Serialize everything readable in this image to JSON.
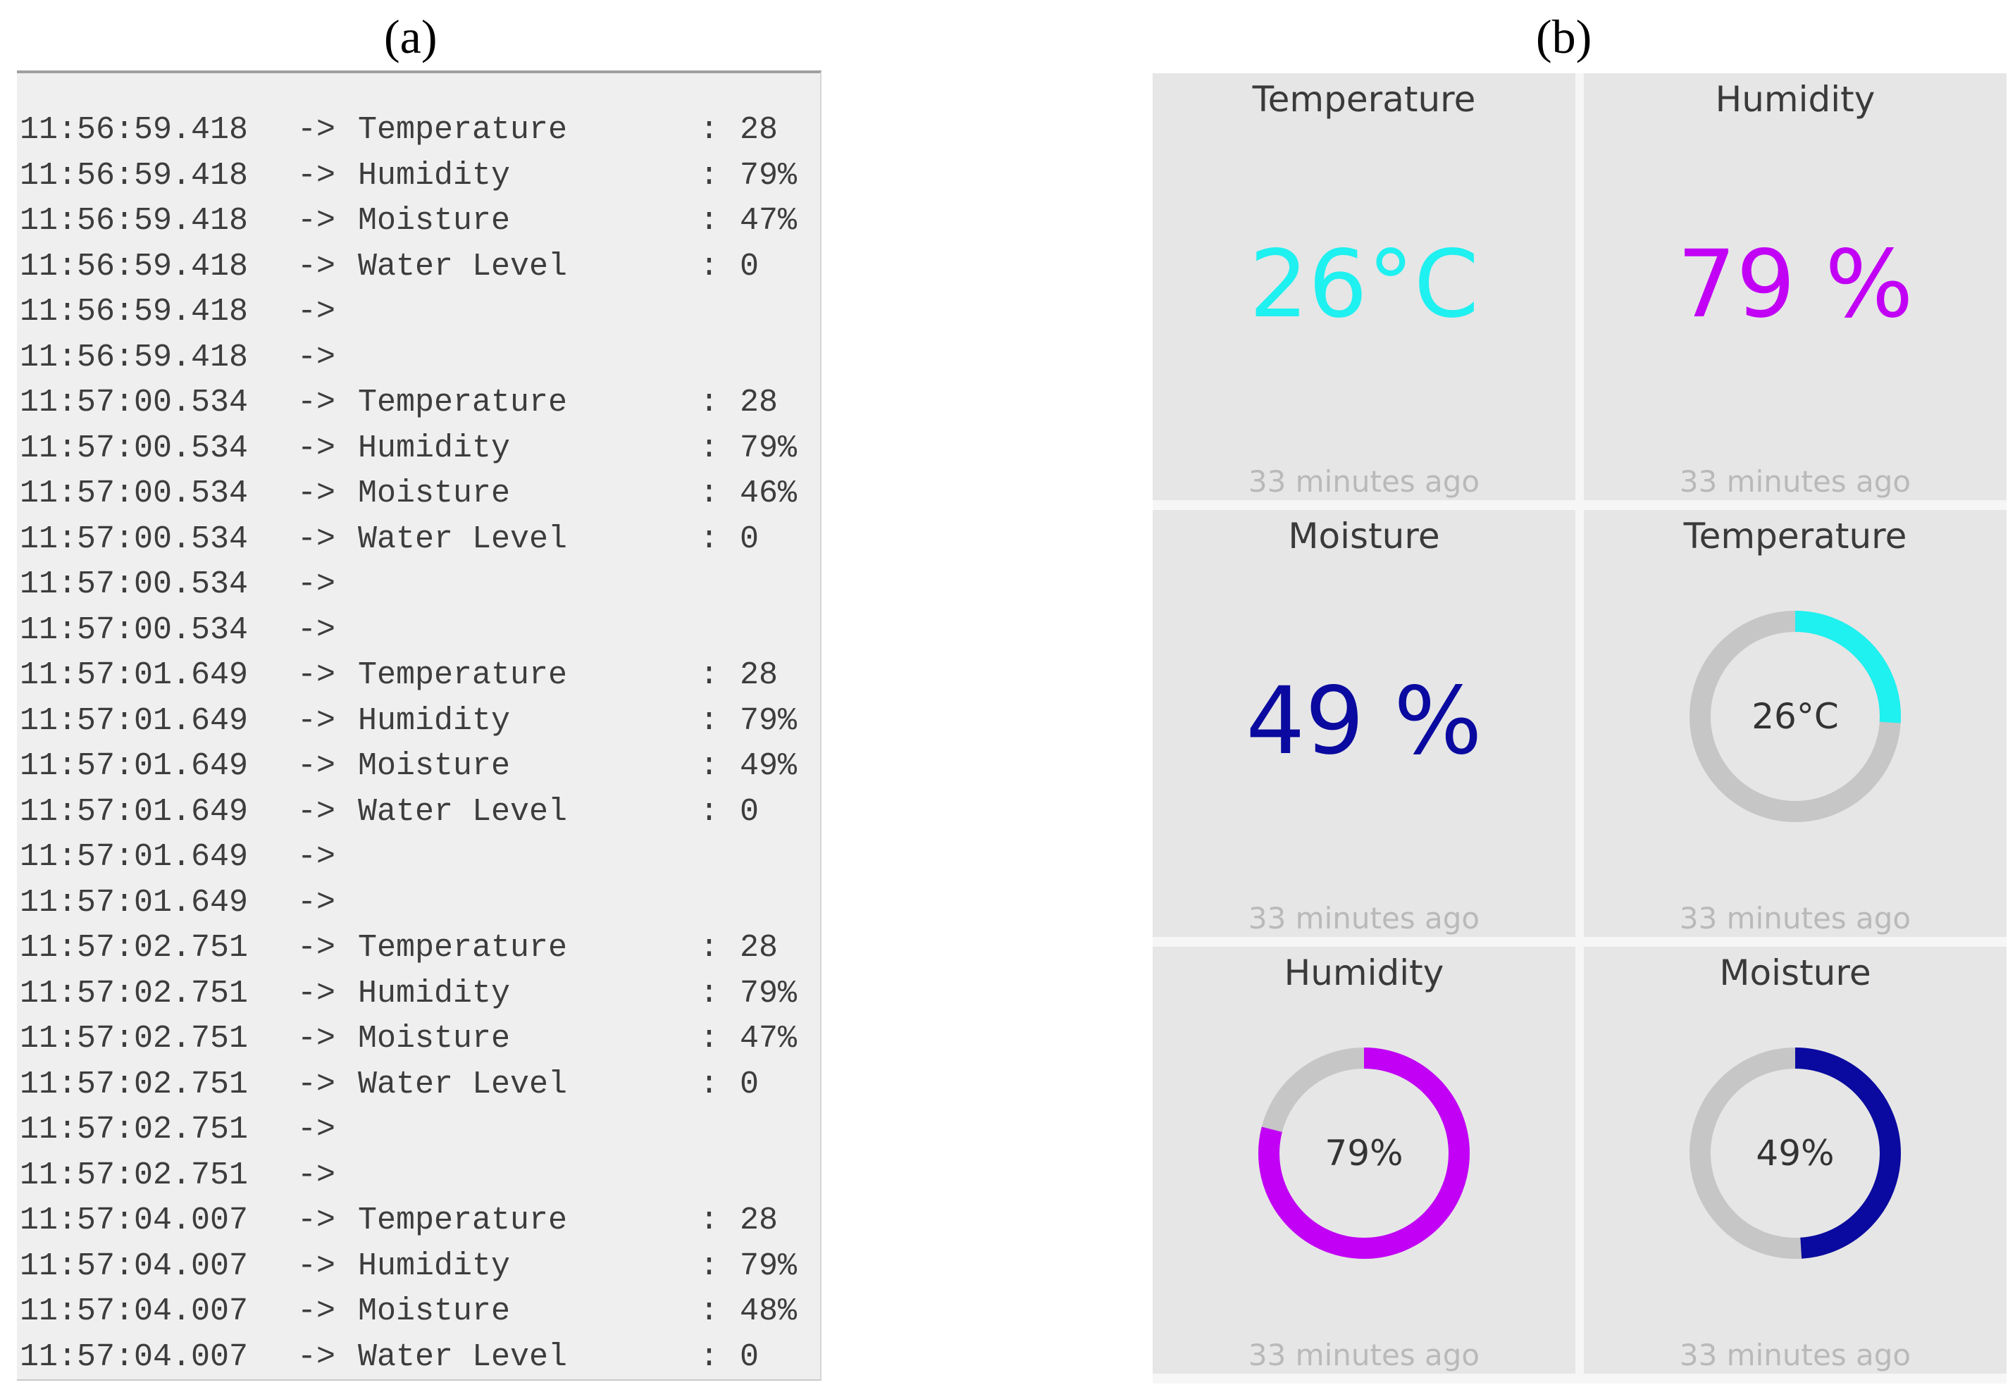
{
  "panels": {
    "a_label": "(a)",
    "b_label": "(b)"
  },
  "serial_log": [
    {
      "time": "11:56:59.418",
      "arrow": "->",
      "key": "Temperature",
      "colon": ":",
      "value": "28"
    },
    {
      "time": "11:56:59.418",
      "arrow": "->",
      "key": "Humidity",
      "colon": ":",
      "value": "79%"
    },
    {
      "time": "11:56:59.418",
      "arrow": "->",
      "key": "Moisture",
      "colon": ":",
      "value": "47%"
    },
    {
      "time": "11:56:59.418",
      "arrow": "->",
      "key": "Water Level",
      "colon": ":",
      "value": "0"
    },
    {
      "time": "11:56:59.418",
      "arrow": "->",
      "key": "",
      "colon": "",
      "value": ""
    },
    {
      "time": "11:56:59.418",
      "arrow": "->",
      "key": "",
      "colon": "",
      "value": ""
    },
    {
      "time": "11:57:00.534",
      "arrow": "->",
      "key": "Temperature",
      "colon": ":",
      "value": "28"
    },
    {
      "time": "11:57:00.534",
      "arrow": "->",
      "key": "Humidity",
      "colon": ":",
      "value": "79%"
    },
    {
      "time": "11:57:00.534",
      "arrow": "->",
      "key": "Moisture",
      "colon": ":",
      "value": "46%"
    },
    {
      "time": "11:57:00.534",
      "arrow": "->",
      "key": "Water Level",
      "colon": ":",
      "value": "0"
    },
    {
      "time": "11:57:00.534",
      "arrow": "->",
      "key": "",
      "colon": "",
      "value": ""
    },
    {
      "time": "11:57:00.534",
      "arrow": "->",
      "key": "",
      "colon": "",
      "value": ""
    },
    {
      "time": "11:57:01.649",
      "arrow": "->",
      "key": "Temperature",
      "colon": ":",
      "value": "28"
    },
    {
      "time": "11:57:01.649",
      "arrow": "->",
      "key": "Humidity",
      "colon": ":",
      "value": "79%"
    },
    {
      "time": "11:57:01.649",
      "arrow": "->",
      "key": "Moisture",
      "colon": ":",
      "value": "49%"
    },
    {
      "time": "11:57:01.649",
      "arrow": "->",
      "key": "Water Level",
      "colon": ":",
      "value": "0"
    },
    {
      "time": "11:57:01.649",
      "arrow": "->",
      "key": "",
      "colon": "",
      "value": ""
    },
    {
      "time": "11:57:01.649",
      "arrow": "->",
      "key": "",
      "colon": "",
      "value": ""
    },
    {
      "time": "11:57:02.751",
      "arrow": "->",
      "key": "Temperature",
      "colon": ":",
      "value": "28"
    },
    {
      "time": "11:57:02.751",
      "arrow": "->",
      "key": "Humidity",
      "colon": ":",
      "value": "79%"
    },
    {
      "time": "11:57:02.751",
      "arrow": "->",
      "key": "Moisture",
      "colon": ":",
      "value": "47%"
    },
    {
      "time": "11:57:02.751",
      "arrow": "->",
      "key": "Water Level",
      "colon": ":",
      "value": "0"
    },
    {
      "time": "11:57:02.751",
      "arrow": "->",
      "key": "",
      "colon": "",
      "value": ""
    },
    {
      "time": "11:57:02.751",
      "arrow": "->",
      "key": "",
      "colon": "",
      "value": ""
    },
    {
      "time": "11:57:04.007",
      "arrow": "->",
      "key": "Temperature",
      "colon": ":",
      "value": "28"
    },
    {
      "time": "11:57:04.007",
      "arrow": "->",
      "key": "Humidity",
      "colon": ":",
      "value": "79%"
    },
    {
      "time": "11:57:04.007",
      "arrow": "->",
      "key": "Moisture",
      "colon": ":",
      "value": "48%"
    },
    {
      "time": "11:57:04.007",
      "arrow": "->",
      "key": "Water Level",
      "colon": ":",
      "value": "0"
    }
  ],
  "dashboard": {
    "value_cards": [
      {
        "title": "Temperature",
        "value": "26°C",
        "updated": "33 minutes ago",
        "color": "#1ff0f0"
      },
      {
        "title": "Humidity",
        "value": "79 %",
        "updated": "33 minutes ago",
        "color": "#c100f5"
      },
      {
        "title": "Moisture",
        "value": "49 %",
        "updated": "33 minutes ago",
        "color": "#0a0aa0"
      }
    ],
    "gauge_cards": [
      {
        "title": "Temperature",
        "label": "26°C",
        "fraction": 0.26,
        "updated": "33 minutes ago",
        "color": "#1ff0f0"
      },
      {
        "title": "Humidity",
        "label": "79%",
        "fraction": 0.79,
        "updated": "33 minutes ago",
        "color": "#c100f5"
      },
      {
        "title": "Moisture",
        "label": "49%",
        "fraction": 0.49,
        "updated": "33 minutes ago",
        "color": "#0a0aa0"
      }
    ],
    "track_color": "#c6c6c6"
  }
}
